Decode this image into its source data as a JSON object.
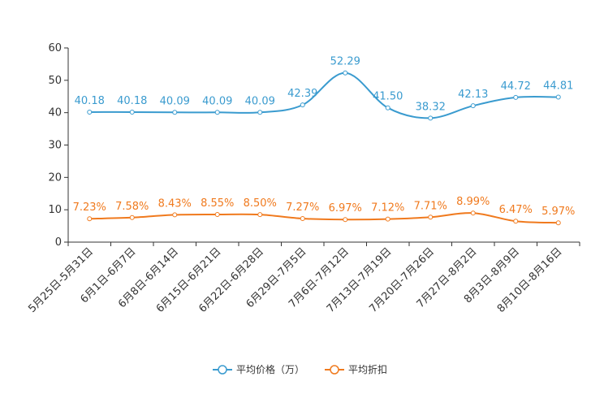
{
  "chart_data": {
    "type": "line",
    "title": "",
    "xlabel": "",
    "ylabel": "",
    "ylim": [
      0,
      60
    ],
    "yticks": [
      0,
      10,
      20,
      30,
      40,
      50,
      60
    ],
    "grid": false,
    "legend_position": "bottom-center",
    "categories": [
      "5月25日-5月31日",
      "6月1日-6月7日",
      "6月8日-6月14日",
      "6月15日-6月21日",
      "6月22日-6月28日",
      "6月29日-7月5日",
      "7月6日-7月12日",
      "7月13日-7月19日",
      "7月20日-7月26日",
      "7月27日-8月2日",
      "8月3日-8月9日",
      "8月10日-8月16日"
    ],
    "series": [
      {
        "name": "平均价格（万）",
        "color": "#3a9bcf",
        "values": [
          40.18,
          40.18,
          40.09,
          40.09,
          40.09,
          42.39,
          52.29,
          41.5,
          38.32,
          42.13,
          44.72,
          44.81
        ],
        "labels": [
          "40.18",
          "40.18",
          "40.09",
          "40.09",
          "40.09",
          "42.39",
          "52.29",
          "41.50",
          "38.32",
          "42.13",
          "44.72",
          "44.81"
        ]
      },
      {
        "name": "平均折扣",
        "color": "#f07a1e",
        "values": [
          7.23,
          7.58,
          8.43,
          8.55,
          8.5,
          7.27,
          6.97,
          7.12,
          7.71,
          8.99,
          6.47,
          5.97
        ],
        "labels": [
          "7.23%",
          "7.58%",
          "8.43%",
          "8.55%",
          "8.50%",
          "7.27%",
          "6.97%",
          "7.12%",
          "7.71%",
          "8.99%",
          "6.47%",
          "5.97%"
        ]
      }
    ]
  }
}
